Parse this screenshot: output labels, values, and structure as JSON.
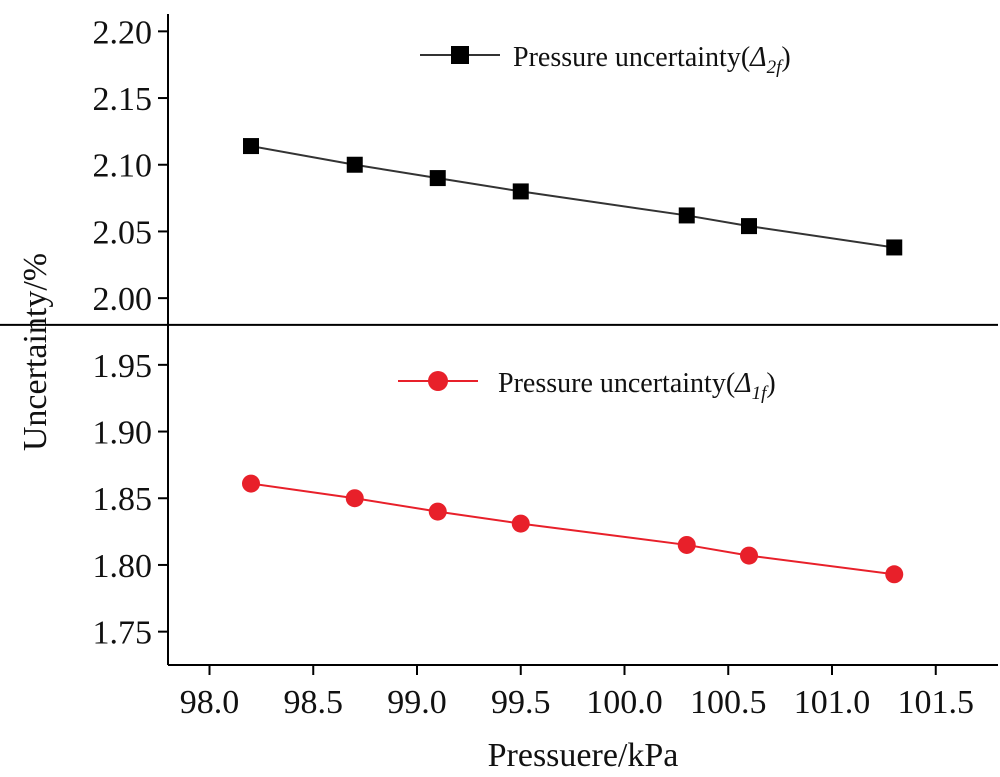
{
  "chart_data": {
    "type": "line",
    "xlabel": "Pressuere/kPa",
    "ylabel": "Uncertainty/%",
    "xlim": [
      97.8,
      101.8
    ],
    "ylim": [
      1.725,
      2.21
    ],
    "x_ticks": [
      "98.0",
      "98.5",
      "99.0",
      "99.5",
      "100.0",
      "100.5",
      "101.0",
      "101.5"
    ],
    "x_tick_values": [
      98.0,
      98.5,
      99.0,
      99.5,
      100.0,
      100.5,
      101.0,
      101.5
    ],
    "y_ticks": [
      "1.75",
      "1.80",
      "1.85",
      "1.90",
      "1.95",
      "2.00",
      "2.05",
      "2.10",
      "2.15",
      "2.20"
    ],
    "y_tick_values": [
      1.75,
      1.8,
      1.85,
      1.9,
      1.95,
      2.0,
      2.05,
      2.1,
      2.15,
      2.2
    ],
    "divider_y": 1.98,
    "grid": false,
    "series": [
      {
        "legend_text": "Pressure uncertainty(",
        "legend_symbol": "Δ",
        "legend_subscript": "2f",
        "legend_close": ")",
        "legend_position": "top-center",
        "color": "#333333",
        "marker_color": "#000000",
        "marker": "square",
        "x": [
          98.2,
          98.7,
          99.1,
          99.5,
          100.3,
          100.6,
          101.3
        ],
        "y": [
          2.114,
          2.1,
          2.09,
          2.08,
          2.062,
          2.054,
          2.038
        ]
      },
      {
        "legend_text": "Pressure uncertainty(",
        "legend_symbol": "Δ",
        "legend_subscript": "1f",
        "legend_close": ")",
        "legend_position": "middle-center",
        "color": "#e8202a",
        "marker_color": "#e8202a",
        "marker": "circle",
        "x": [
          98.2,
          98.7,
          99.1,
          99.5,
          100.3,
          100.6,
          101.3
        ],
        "y": [
          1.861,
          1.85,
          1.84,
          1.831,
          1.815,
          1.807,
          1.793
        ]
      }
    ]
  }
}
